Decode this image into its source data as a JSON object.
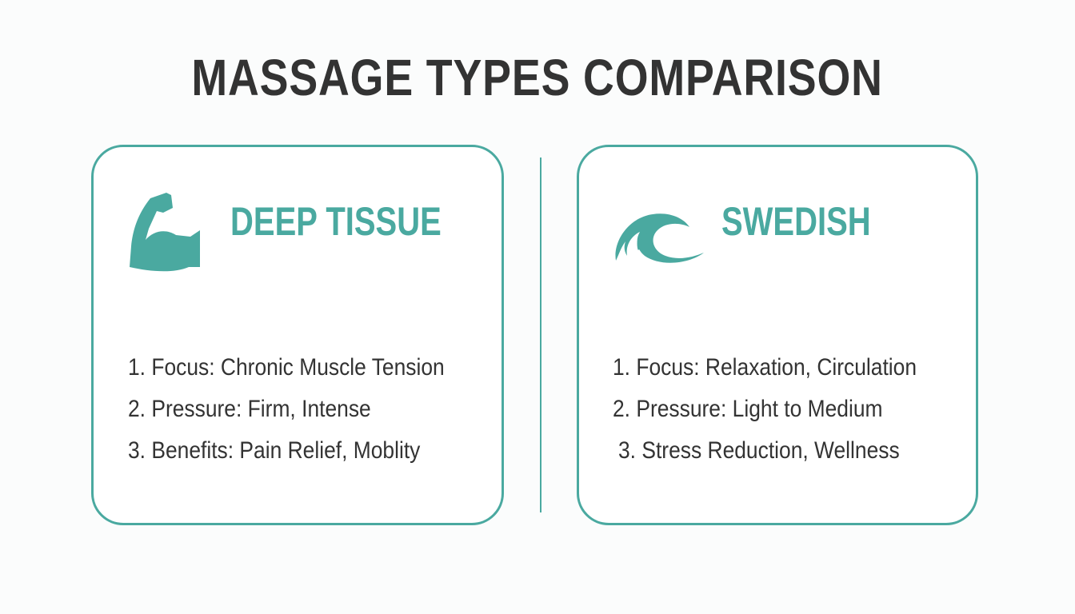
{
  "title": "MASSAGE TYPES COMPARISON",
  "accent_color": "#4aa9a0",
  "cards": [
    {
      "heading": "DEEP TISSUE",
      "icon": "flexed-bicep-icon",
      "items": [
        "1. Focus: Chronic Muscle Tension",
        "2. Pressure: Firm, Intense",
        "3. Benefits: Pain Relief, Moblity"
      ]
    },
    {
      "heading": "SWEDISH",
      "icon": "wave-icon",
      "items": [
        "1. Focus: Relaxation, Circulation",
        "2. Pressure: Light to Medium",
        "3. Stress Reduction, Wellness"
      ]
    }
  ]
}
